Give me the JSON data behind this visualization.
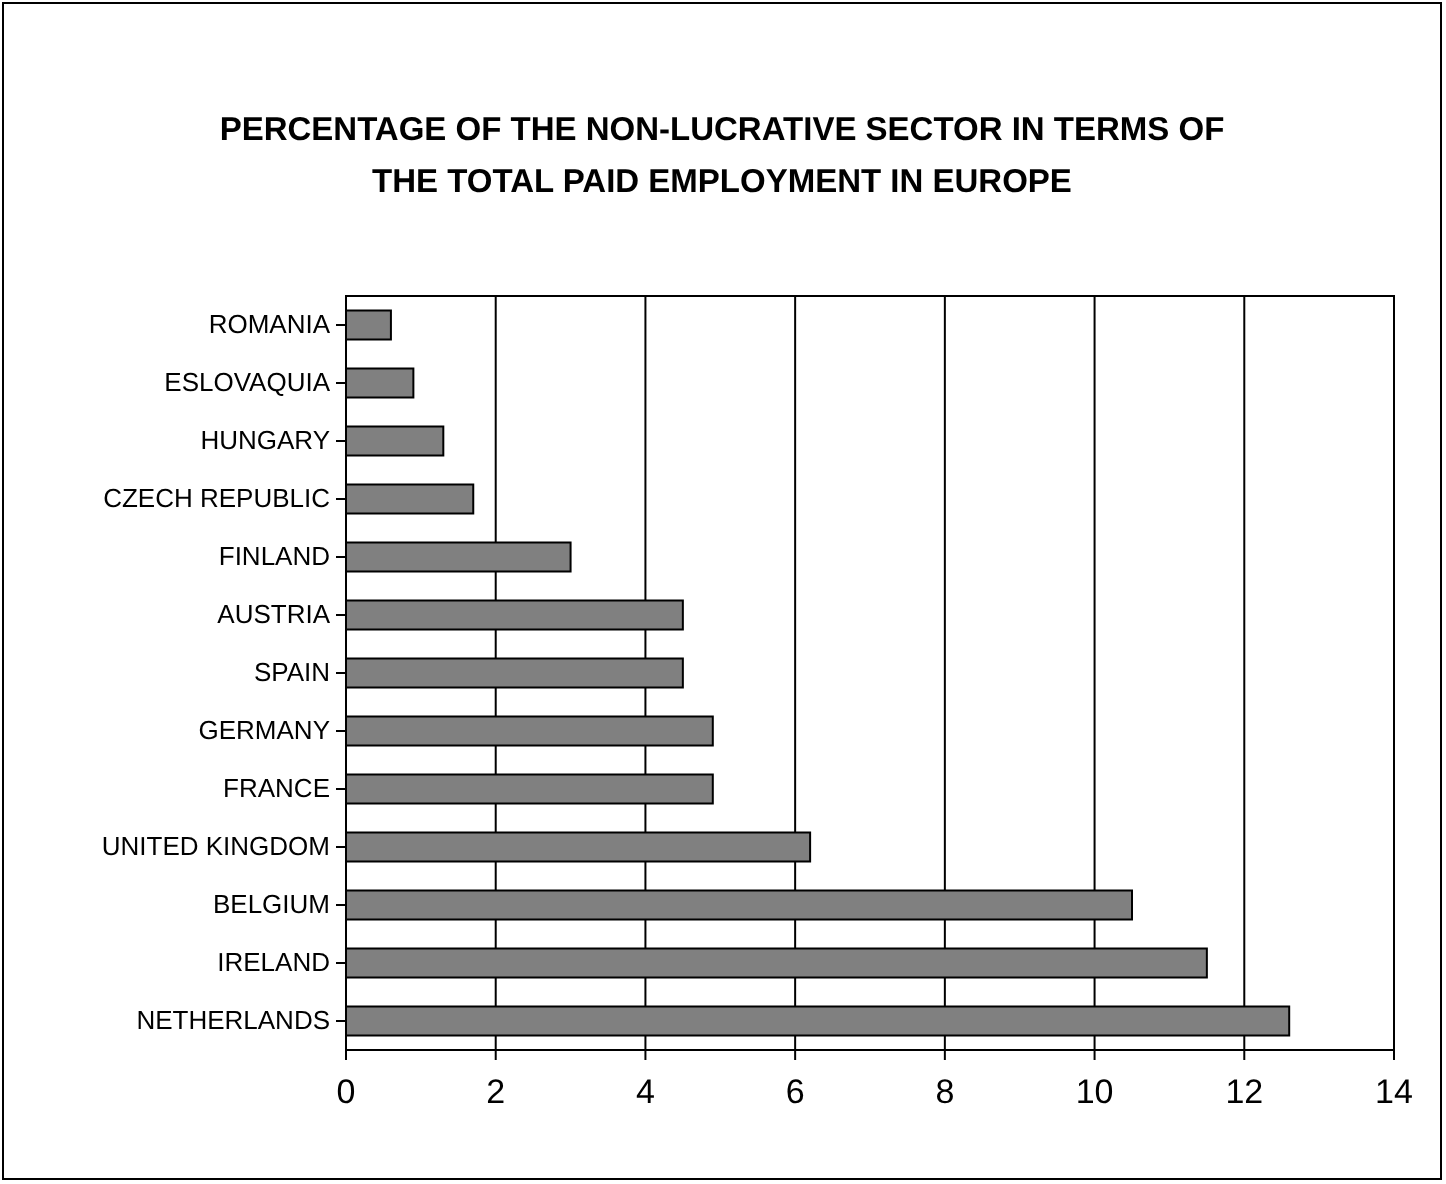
{
  "chart_data": {
    "type": "bar",
    "orientation": "horizontal",
    "title": "PERCENTAGE OF THE NON-LUCRATIVE SECTOR IN TERMS OF THE TOTAL PAID EMPLOYMENT IN EUROPE",
    "categories": [
      "ROMANIA",
      "ESLOVAQUIA",
      "HUNGARY",
      "CZECH REPUBLIC",
      "FINLAND",
      "AUSTRIA",
      "SPAIN",
      "GERMANY",
      "FRANCE",
      "UNITED KINGDOM",
      "BELGIUM",
      "IRELAND",
      "NETHERLANDS"
    ],
    "values": [
      0.6,
      0.9,
      1.3,
      1.7,
      3.0,
      4.5,
      4.5,
      4.9,
      4.9,
      6.2,
      10.5,
      11.5,
      12.6
    ],
    "color": "#808080",
    "xlim": [
      0,
      14
    ],
    "xticks": [
      0,
      2,
      4,
      6,
      8,
      10,
      12,
      14
    ],
    "grid": "x"
  }
}
